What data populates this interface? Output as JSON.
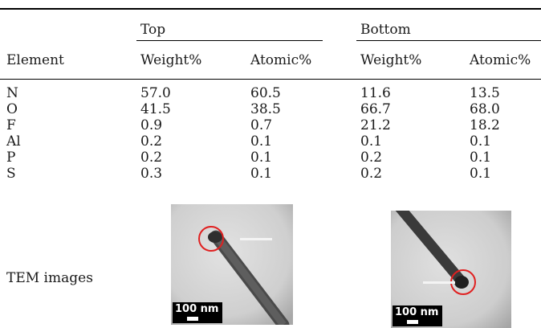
{
  "table": {
    "group_headers": [
      "Top",
      "Bottom"
    ],
    "column_headers": [
      "Element",
      "Weight%",
      "Atomic%",
      "Weight%",
      "Atomic%"
    ],
    "rows": [
      [
        "N",
        "57.0",
        "60.5",
        "11.6",
        "13.5"
      ],
      [
        "O",
        "41.5",
        "38.5",
        "66.7",
        "68.0"
      ],
      [
        "F",
        "0.9",
        "0.7",
        "21.2",
        "18.2"
      ],
      [
        "Al",
        "0.2",
        "0.1",
        "0.1",
        "0.1"
      ],
      [
        "P",
        "0.2",
        "0.1",
        "0.2",
        "0.1"
      ],
      [
        "S",
        "0.3",
        "0.1",
        "0.2",
        "0.1"
      ]
    ]
  },
  "tem": {
    "label": "TEM images",
    "top_scale": "100 nm",
    "bottom_scale": "100 nm"
  },
  "colors": {
    "rule": "#000000",
    "highlight_circle": "#e02020"
  }
}
